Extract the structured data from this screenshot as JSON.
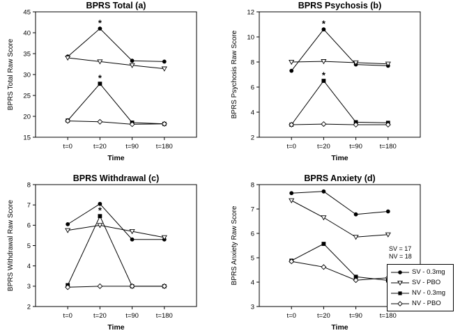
{
  "legend": {
    "sample_sizes": [
      "SV = 17",
      "NV = 18"
    ],
    "entries": [
      {
        "label": "SV - 0.3mg",
        "marker": "filled-circle"
      },
      {
        "label": "SV - PBO",
        "marker": "open-triangle-down"
      },
      {
        "label": "NV - 0.3mg",
        "marker": "filled-square"
      },
      {
        "label": "NV - PBO",
        "marker": "open-diamond"
      }
    ]
  },
  "chart_data": [
    {
      "type": "line",
      "title": "BPRS Total (a)",
      "xlabel": "Time",
      "ylabel": "BPRS Total Raw Score",
      "categories": [
        "t=0",
        "t=20",
        "t=90",
        "t=180"
      ],
      "ylim": [
        15,
        45
      ],
      "yticks": [
        15,
        20,
        25,
        30,
        35,
        40,
        45
      ],
      "series": [
        {
          "name": "SV - 0.3mg",
          "values": [
            34.3,
            41.0,
            33.3,
            33.1
          ]
        },
        {
          "name": "SV - PBO",
          "values": [
            34.0,
            33.1,
            32.2,
            31.4
          ]
        },
        {
          "name": "NV - 0.3mg",
          "values": [
            19.0,
            27.8,
            18.5,
            18.2
          ]
        },
        {
          "name": "NV - PBO",
          "values": [
            18.9,
            18.7,
            18.1,
            18.2
          ]
        }
      ],
      "annotations": [
        {
          "text": "*",
          "category": "t=20",
          "value": 41.0
        },
        {
          "text": "*",
          "category": "t=20",
          "value": 27.8
        }
      ]
    },
    {
      "type": "line",
      "title": "BPRS Psychosis (b)",
      "xlabel": "Time",
      "ylabel": "BPRS Psychosis Raw Score",
      "categories": [
        "t=0",
        "t=20",
        "t=90",
        "t=180"
      ],
      "ylim": [
        2,
        12
      ],
      "yticks": [
        2,
        4,
        6,
        8,
        10,
        12
      ],
      "series": [
        {
          "name": "SV - 0.3mg",
          "values": [
            7.3,
            10.6,
            7.8,
            7.7
          ]
        },
        {
          "name": "SV - PBO",
          "values": [
            8.0,
            8.05,
            7.95,
            7.85
          ]
        },
        {
          "name": "NV - 0.3mg",
          "values": [
            3.0,
            6.5,
            3.2,
            3.15
          ]
        },
        {
          "name": "NV - PBO",
          "values": [
            3.0,
            3.05,
            3.0,
            3.0
          ]
        }
      ],
      "annotations": [
        {
          "text": "*",
          "category": "t=20",
          "value": 10.6
        },
        {
          "text": "*",
          "category": "t=20",
          "value": 6.5
        }
      ]
    },
    {
      "type": "line",
      "title": "BPRS Withdrawal (c)",
      "xlabel": "Time",
      "ylabel": "BPRS Withdrawal Raw Score",
      "categories": [
        "t=0",
        "t=20",
        "t=90",
        "t=180"
      ],
      "ylim": [
        2,
        8
      ],
      "yticks": [
        2,
        3,
        4,
        5,
        6,
        7,
        8
      ],
      "series": [
        {
          "name": "SV - 0.3mg",
          "values": [
            6.05,
            7.05,
            5.3,
            5.3
          ]
        },
        {
          "name": "SV - PBO",
          "values": [
            5.75,
            6.0,
            5.7,
            5.4
          ]
        },
        {
          "name": "NV - 0.3mg",
          "values": [
            3.05,
            6.45,
            3.0,
            3.0
          ]
        },
        {
          "name": "NV - PBO",
          "values": [
            2.95,
            3.0,
            3.0,
            3.0
          ]
        }
      ],
      "annotations": [
        {
          "text": "*",
          "category": "t=20",
          "value": 6.45
        }
      ]
    },
    {
      "type": "line",
      "title": "BPRS Anxiety (d)",
      "xlabel": "Time",
      "ylabel": "BPRS Anxiety Raw Score",
      "categories": [
        "t=0",
        "t=20",
        "t=90",
        "t=180"
      ],
      "ylim": [
        3,
        8
      ],
      "yticks": [
        3,
        4,
        5,
        6,
        7,
        8
      ],
      "series": [
        {
          "name": "SV - 0.3mg",
          "values": [
            7.65,
            7.72,
            6.78,
            6.9
          ]
        },
        {
          "name": "SV - PBO",
          "values": [
            7.35,
            6.65,
            5.85,
            5.95
          ]
        },
        {
          "name": "NV - 0.3mg",
          "values": [
            4.88,
            5.57,
            4.22,
            4.07
          ]
        },
        {
          "name": "NV - PBO",
          "values": [
            4.85,
            4.62,
            4.08,
            4.18
          ]
        }
      ],
      "annotations": []
    }
  ]
}
